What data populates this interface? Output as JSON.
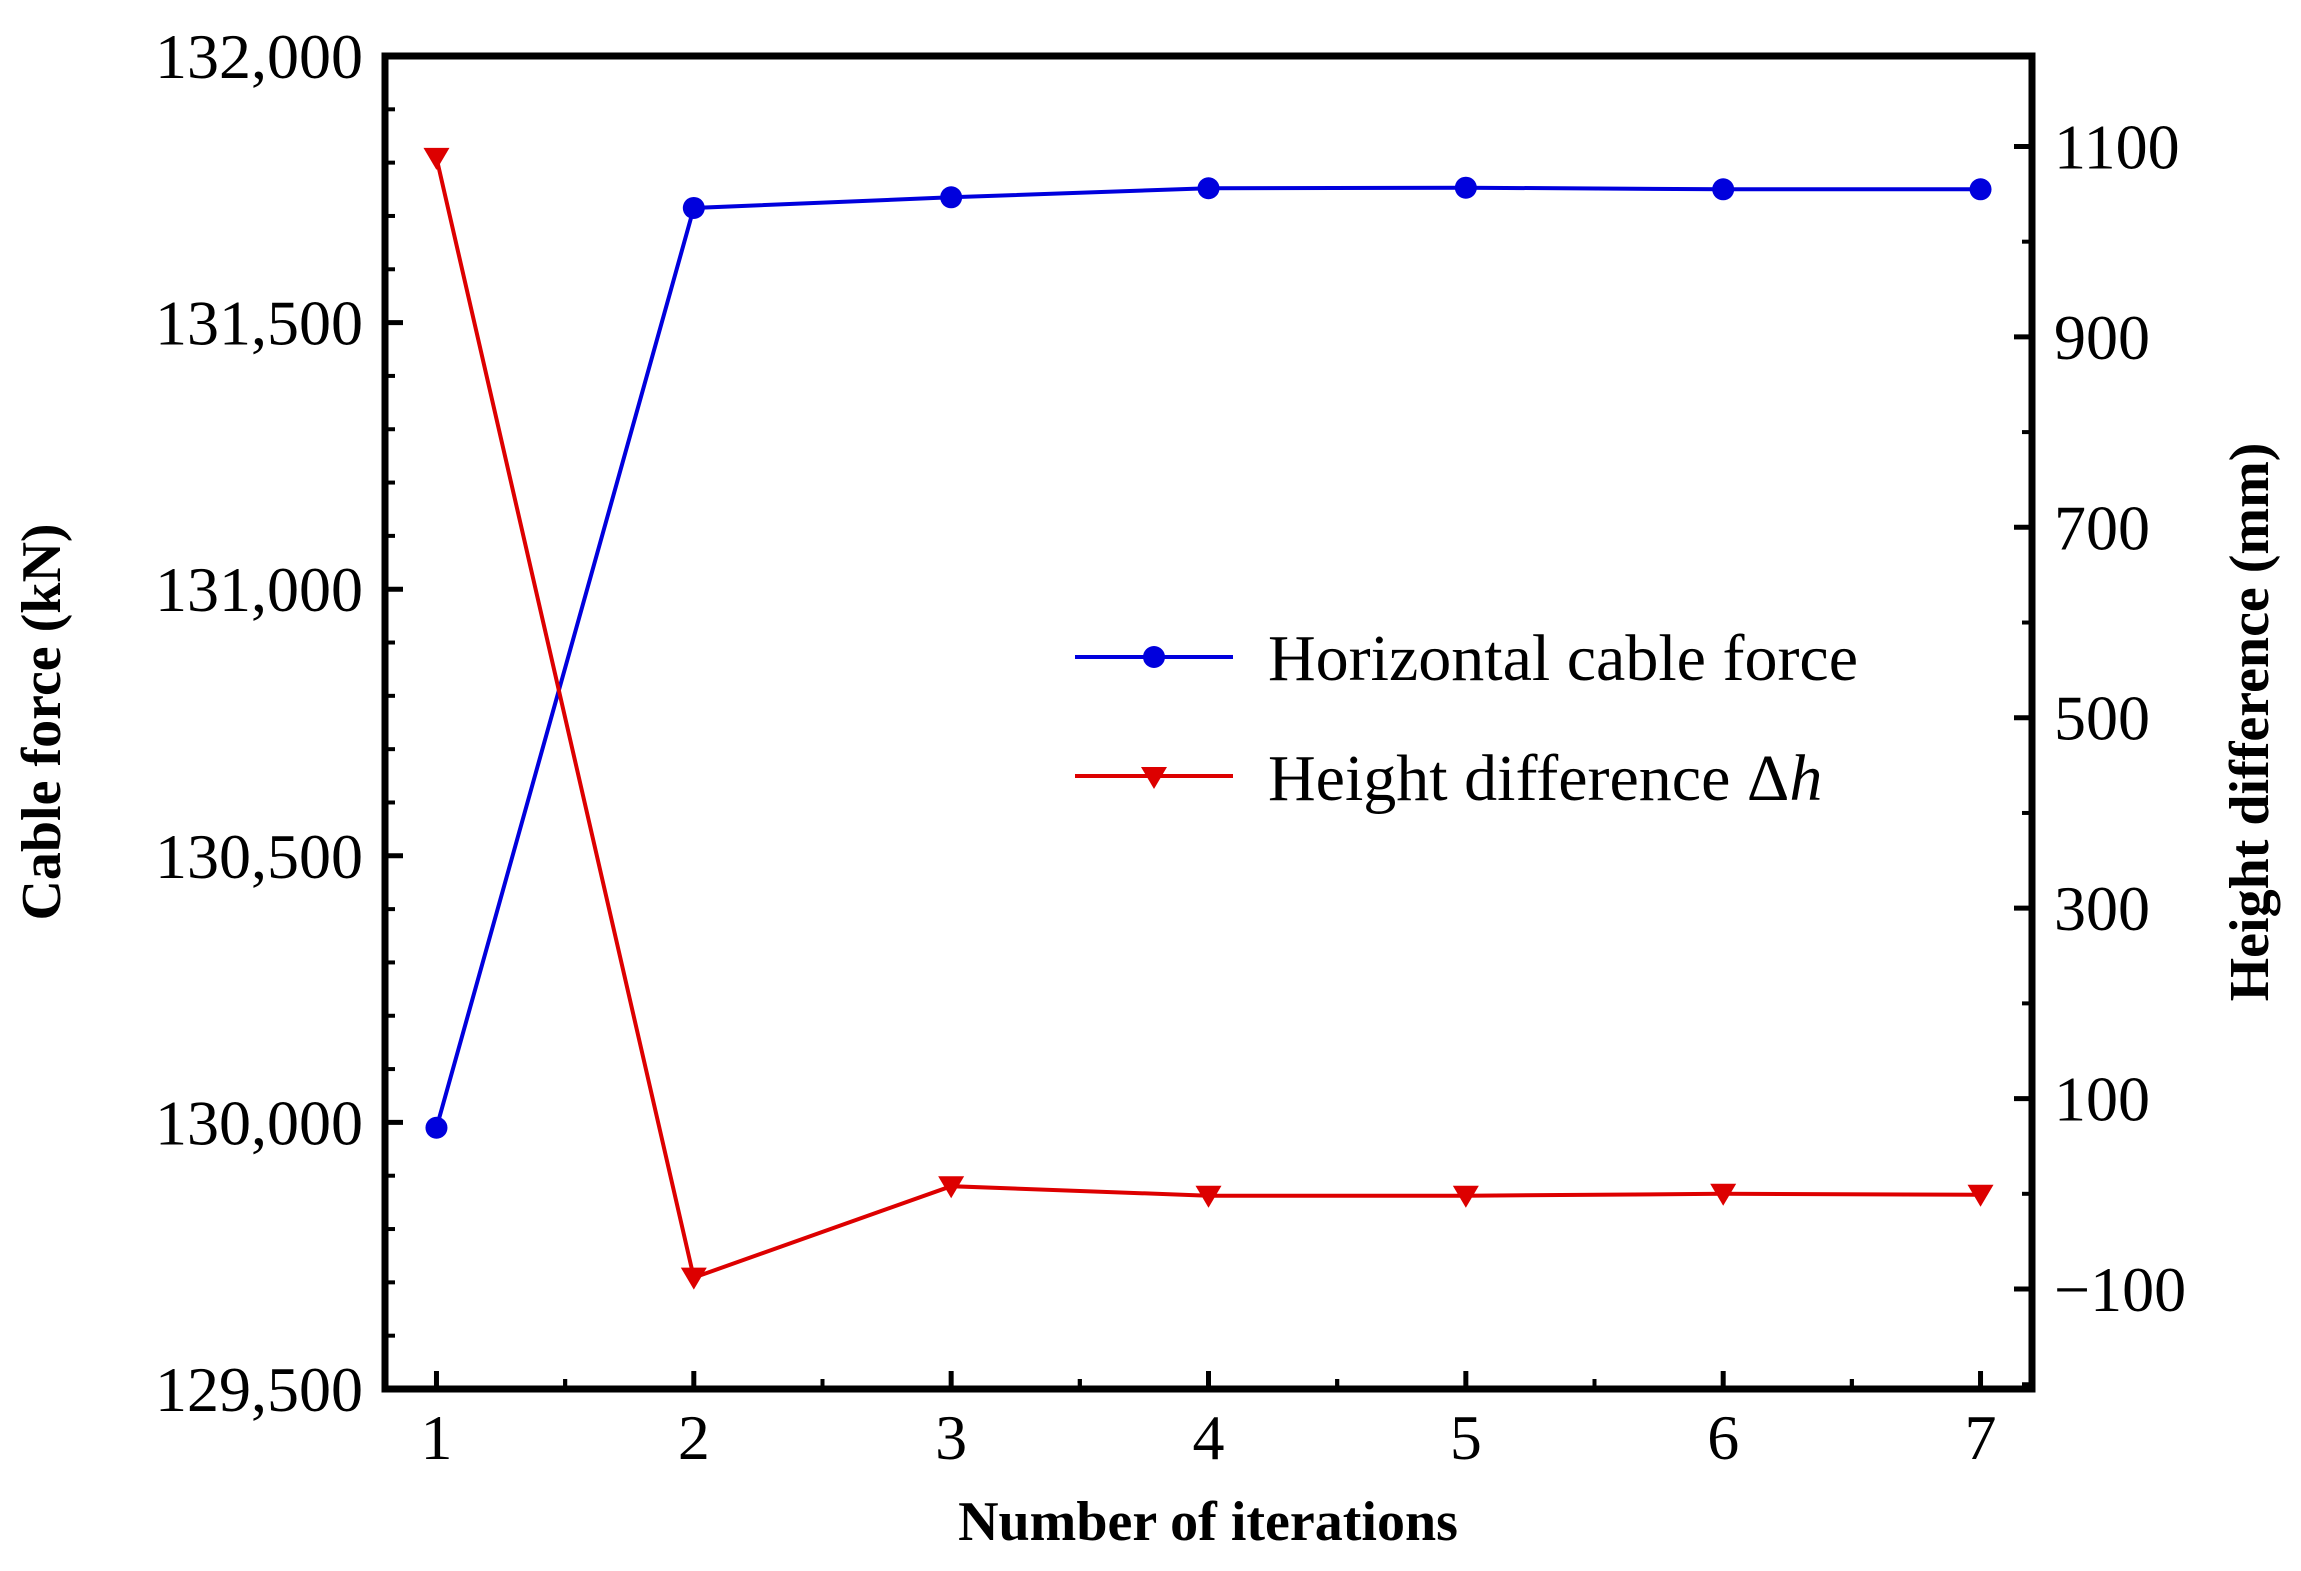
{
  "chart_data": {
    "type": "line",
    "title": "",
    "xlabel": "Number of iterations",
    "ylabel_left": "Cable force (kN)",
    "ylabel_right": "Height difference (mm)",
    "x": [
      1,
      2,
      3,
      4,
      5,
      6,
      7
    ],
    "x_tick_labels": [
      "1",
      "2",
      "3",
      "4",
      "5",
      "6",
      "7"
    ],
    "xlim": [
      0.8,
      7.2
    ],
    "ylim_left": [
      129500,
      132000
    ],
    "ylim_right": [
      -205,
      1195
    ],
    "y_left_tick_values": [
      129500,
      130000,
      130500,
      131000,
      131500,
      132000
    ],
    "y_left_tick_labels": [
      "129,500",
      "130,000",
      "130,500",
      "131,000",
      "131,500",
      "132,000"
    ],
    "y_right_tick_values": [
      -100,
      100,
      300,
      500,
      700,
      900,
      1100
    ],
    "y_right_tick_labels": [
      "−100",
      "100",
      "300",
      "500",
      "700",
      "900",
      "1100"
    ],
    "series": [
      {
        "name": "Horizontal cable force",
        "axis": "left",
        "color": "#0000dd",
        "marker": "circle",
        "values": [
          129990,
          131715,
          131735,
          131752,
          131753,
          131750,
          131750
        ]
      },
      {
        "name": "Height difference",
        "name_symbol": "Δ",
        "name_variable": "h",
        "axis": "right",
        "color": "#dd0000",
        "marker": "triangle-down",
        "values": [
          1088,
          -88,
          8,
          -2,
          -2,
          0,
          -1
        ]
      }
    ],
    "legend_position": "center-right"
  }
}
